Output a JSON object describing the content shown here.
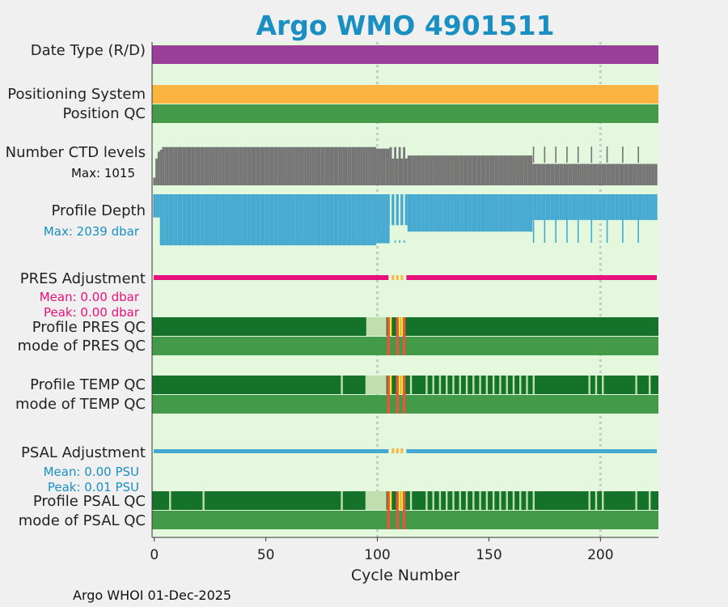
{
  "chart_data": {
    "type": "timeline-panels",
    "title": "Argo WMO 4901511",
    "xlabel": "Cycle Number",
    "xlim": [
      -1,
      226
    ],
    "xticks": [
      0,
      50,
      100,
      150,
      200
    ],
    "rows": [
      {
        "label": "Date Type (R/D)",
        "color": "#9a3f99"
      },
      {
        "label": "Positioning System",
        "color": "#fcb440"
      },
      {
        "label": "Position QC",
        "color": "#439a48"
      },
      {
        "label": "Number CTD levels",
        "color": "#757575",
        "max_label": "Max: 1015",
        "max_value": 1015
      },
      {
        "label": "Profile Depth",
        "color": "#45a9d1",
        "max_label": "Max: 2039 dbar",
        "max_value": 2039
      },
      {
        "label": "PRES Adjustment",
        "color": "#e8107a",
        "mean_label": "Mean: 0.00 dbar",
        "peak_label": "Peak: 0.00 dbar"
      },
      {
        "label": "Profile PRES QC",
        "color": "#15722a"
      },
      {
        "label": "mode of PRES QC",
        "color": "#439a48"
      },
      {
        "label": "Profile TEMP QC",
        "color": "#15722a"
      },
      {
        "label": "mode of TEMP QC",
        "color": "#439a48"
      },
      {
        "label": "PSAL Adjustment",
        "color": "#45a9d1",
        "mean_label": "Mean: 0.00 PSU",
        "peak_label": "Peak: 0.01 PSU"
      },
      {
        "label": "Profile PSAL QC",
        "color": "#15722a"
      },
      {
        "label": "mode of PSAL QC",
        "color": "#439a48"
      }
    ],
    "gridlines_x": [
      100,
      200
    ],
    "bad_cycles_red": [
      105,
      109,
      112
    ],
    "bad_cycles_yellow": [
      106,
      110,
      111
    ],
    "temp_qc_gaps": [
      84,
      95,
      100,
      115,
      122,
      125,
      128,
      131,
      134,
      137,
      140,
      143,
      146,
      149,
      152,
      155,
      158,
      161,
      164,
      167,
      170,
      195,
      198,
      201,
      216,
      222
    ],
    "psal_qc_gaps": [
      7,
      22,
      84,
      95,
      100,
      115,
      122,
      125,
      128,
      131,
      134,
      137,
      140,
      143,
      146,
      149,
      152,
      155,
      158,
      161,
      164,
      167,
      170,
      195,
      198,
      201,
      216,
      222
    ],
    "depth_short_profiles": [
      3,
      20,
      108,
      110,
      112,
      170,
      175,
      180,
      185,
      190,
      196,
      203,
      210,
      217
    ]
  },
  "footer": "Argo WHOI 01-Dec-2025"
}
